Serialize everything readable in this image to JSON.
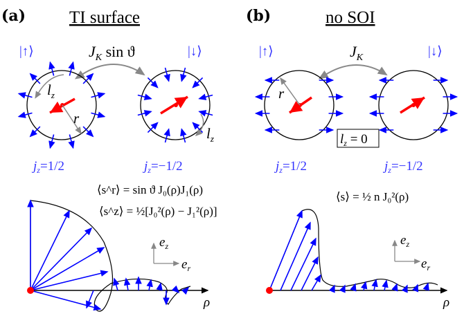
{
  "panel_a": {
    "tag": "(a)",
    "title": "TI surface",
    "ket_up": "|↑⟩",
    "ket_down": "|↓⟩",
    "coupling": "J",
    "coupling_sub": "K",
    "coupling_tail": " sin ϑ",
    "lz_label": "l",
    "lz_sub": "z",
    "r_label": "r",
    "jz_left": "j",
    "jz_left_sub": "z",
    "jz_left_val": "=1/2",
    "jz_right": "j",
    "jz_right_sub": "z",
    "jz_right_val": "=−1/2",
    "eq1": "⟨s^r⟩ = sin ϑ J₀(ρ)J₁(ρ)",
    "eq2": "⟨s^z⟩ = ½[J₀²(ρ) − J₁²(ρ)]",
    "ez": "e",
    "ez_sub": "z",
    "er": "e",
    "er_sub": "r",
    "rho": "ρ"
  },
  "panel_b": {
    "tag": "(b)",
    "title": "no SOI",
    "ket_up": "|↑⟩",
    "ket_down": "|↓⟩",
    "coupling": "J",
    "coupling_sub": "K",
    "r_label": "r",
    "lz_box": "l",
    "lz_box_sub": "z",
    "lz_box_val": " = 0",
    "jz_left": "j",
    "jz_left_sub": "z",
    "jz_left_val": "=1/2",
    "jz_right": "j",
    "jz_right_sub": "z",
    "jz_right_val": "=−1/2",
    "eq": "⟨s⟩ = ½ n J₀²(ρ)",
    "ez": "e",
    "ez_sub": "z",
    "er": "e",
    "er_sub": "r",
    "rho": "ρ"
  },
  "colors": {
    "blue": "#0000ff",
    "red": "#ff0000",
    "gray": "#888888",
    "black": "#000000",
    "label_blue": "#3333ff"
  }
}
